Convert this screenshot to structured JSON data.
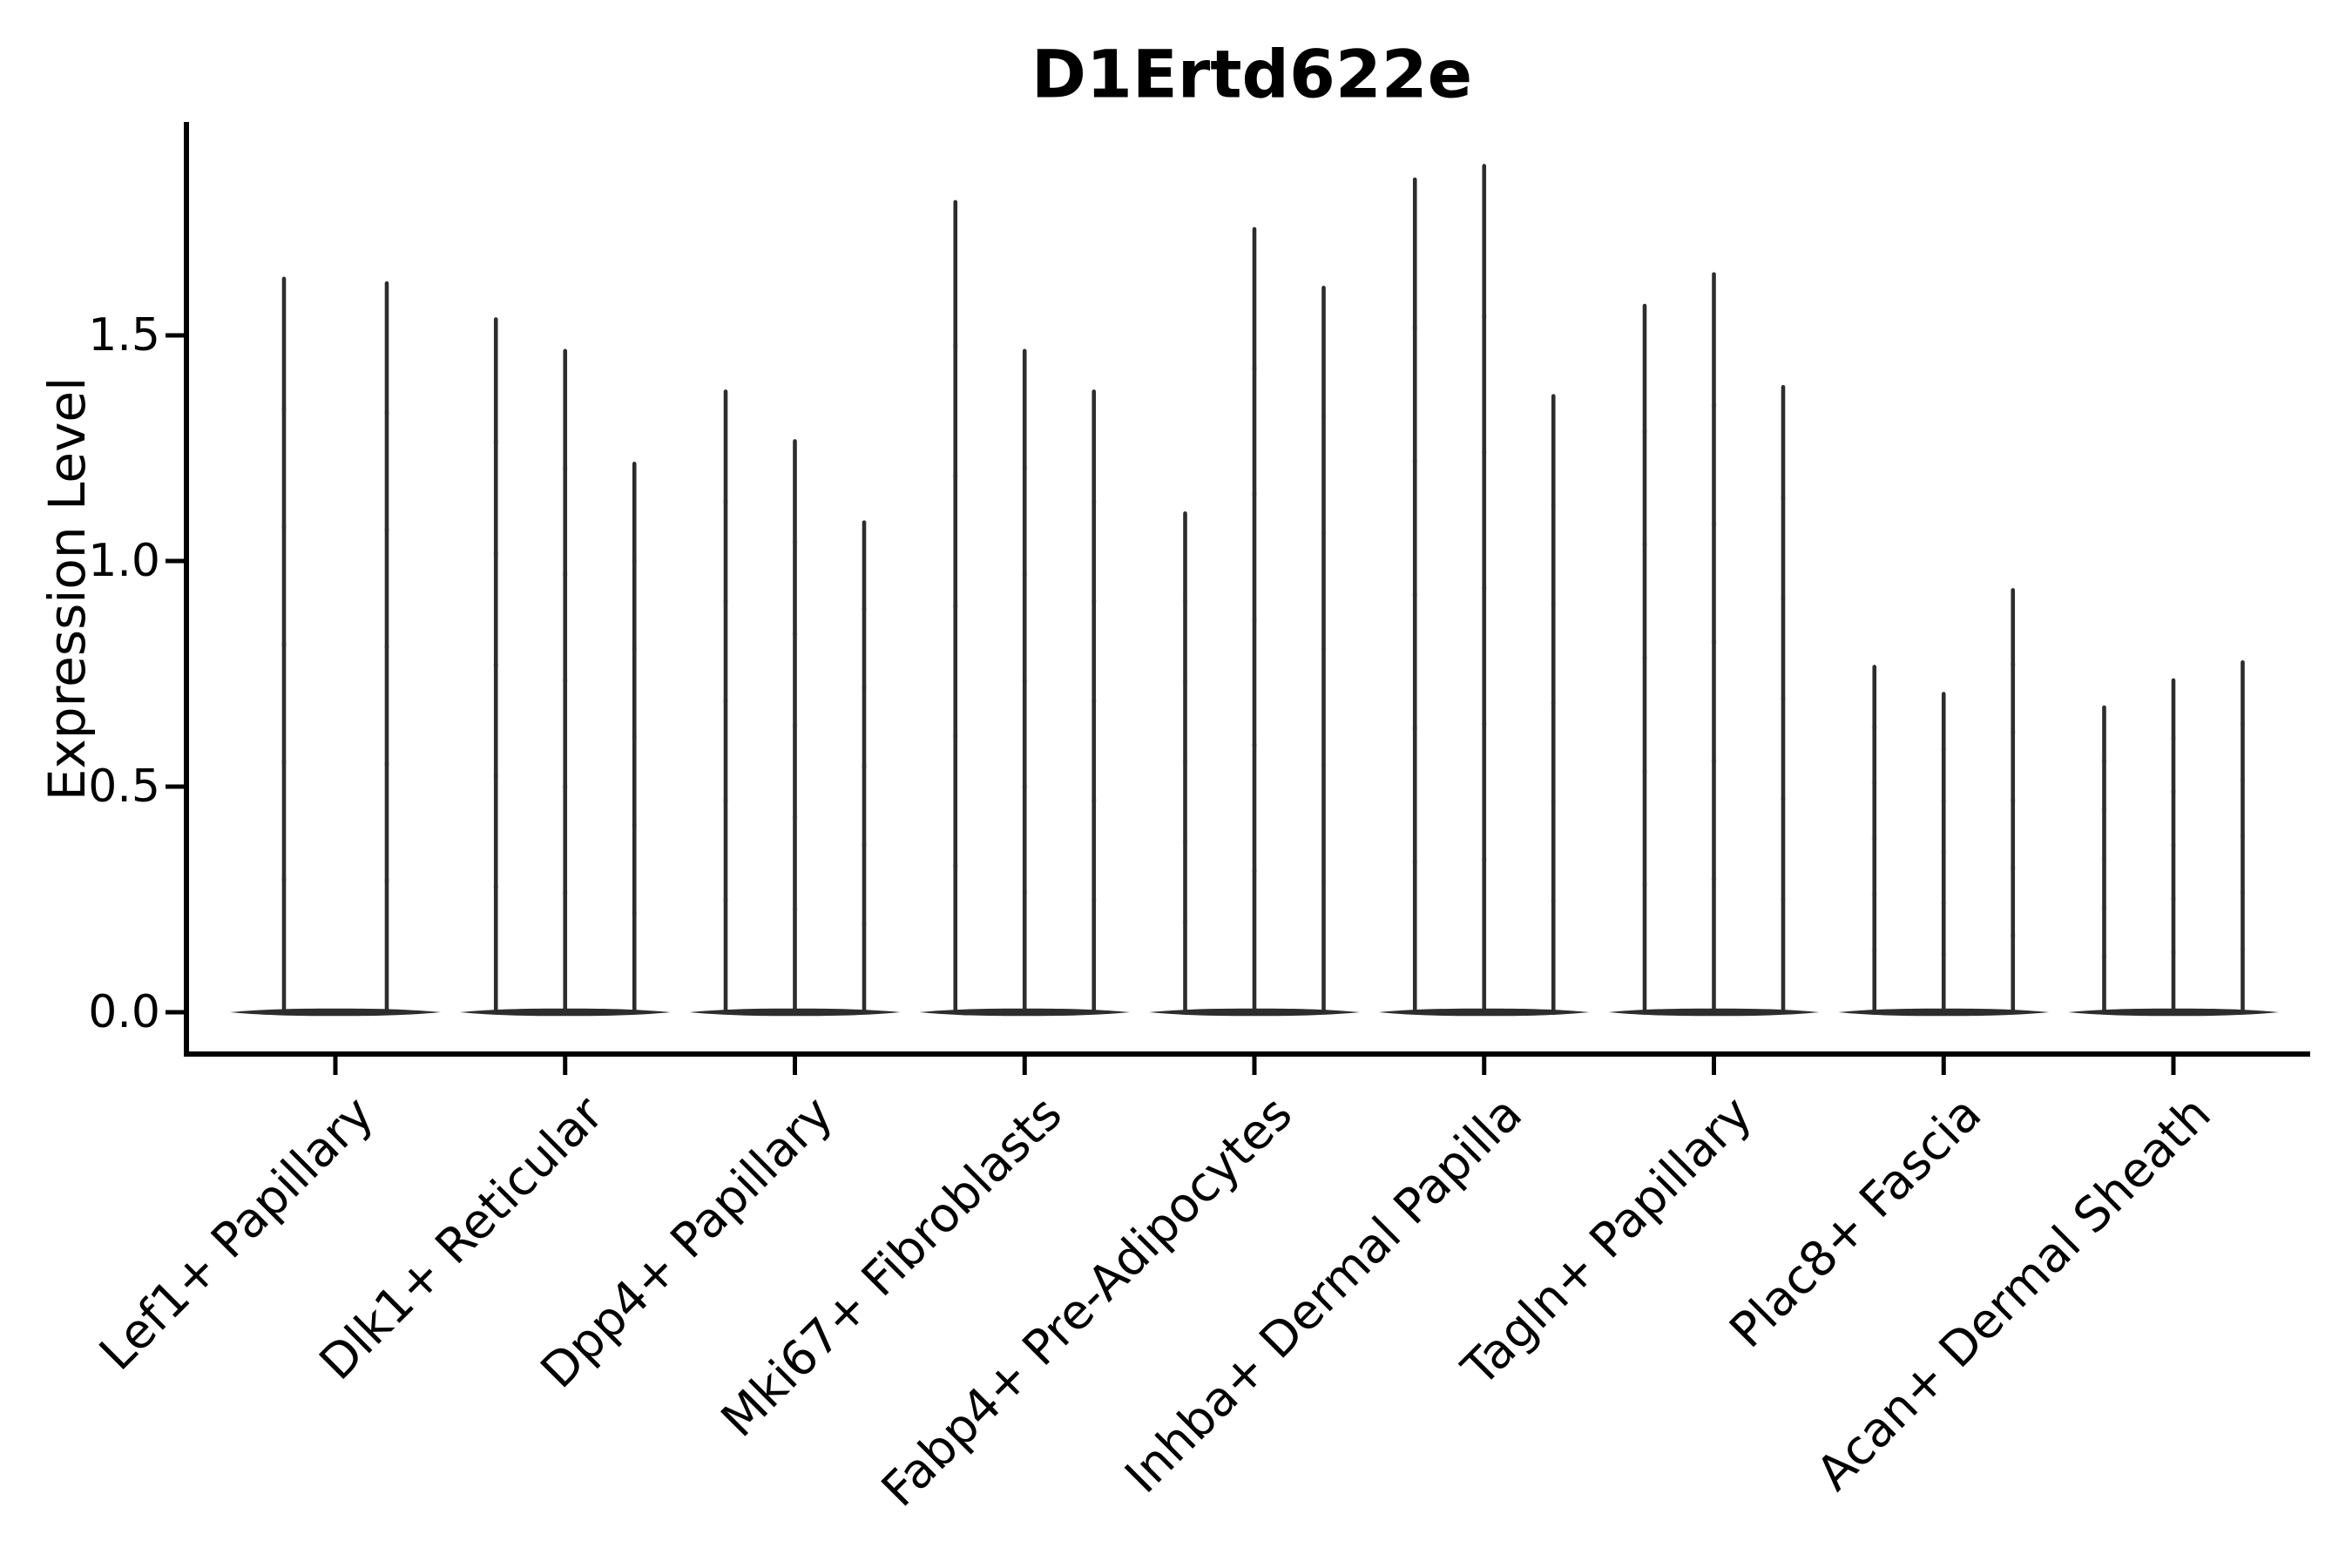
{
  "title": "D1Ertd622e",
  "axes": {
    "ylabel": "Expression Level",
    "yticks": [
      {
        "value": 0.0,
        "label": "0.0"
      },
      {
        "value": 0.5,
        "label": "0.5"
      },
      {
        "value": 1.0,
        "label": "1.0"
      },
      {
        "value": 1.5,
        "label": "1.5"
      }
    ]
  },
  "colors": {
    "violin": "#2d2d2d",
    "axis": "#000000",
    "text": "#000000",
    "background": "#ffffff"
  },
  "chart_data": {
    "type": "violin",
    "title": "D1Ertd622e",
    "xlabel": "",
    "ylabel": "Expression Level",
    "ylim": [
      -0.09,
      1.97
    ],
    "yticks": [
      0.0,
      0.5,
      1.0,
      1.5
    ],
    "grid": false,
    "legend": "none",
    "baseline_value": 0.0,
    "description": "Single-cell expression violin plot for gene D1Ertd622e across dermal cell-type groups; each group holds 2-3 replicate violins. Density is concentrated at 0 (wide flat base) with a thin spike rising to each violin's maximum expression value.",
    "groups": [
      {
        "label": "Lef1+ Papillary",
        "violin_max_values": [
          1.63,
          1.62
        ]
      },
      {
        "label": "Dlk1+ Reticular",
        "violin_max_values": [
          1.54,
          1.47,
          1.22
        ]
      },
      {
        "label": "Dpp4+ Papillary",
        "violin_max_values": [
          1.38,
          1.27,
          1.09
        ]
      },
      {
        "label": "Mki67+ Fibroblasts",
        "violin_max_values": [
          1.8,
          1.47,
          1.38
        ]
      },
      {
        "label": "Fabp4+ Pre-Adipocytes",
        "violin_max_values": [
          1.11,
          1.74,
          1.61
        ]
      },
      {
        "label": "Inhba+ Dermal Papilla",
        "violin_max_values": [
          1.85,
          1.88,
          1.37
        ]
      },
      {
        "label": "Tagln+ Papillary",
        "violin_max_values": [
          1.57,
          1.64,
          1.39
        ]
      },
      {
        "label": "Plac8+ Fascia",
        "violin_max_values": [
          0.77,
          0.71,
          0.94
        ]
      },
      {
        "label": "Acan+ Dermal Sheath",
        "violin_max_values": [
          0.68,
          0.74,
          0.78
        ]
      }
    ]
  }
}
